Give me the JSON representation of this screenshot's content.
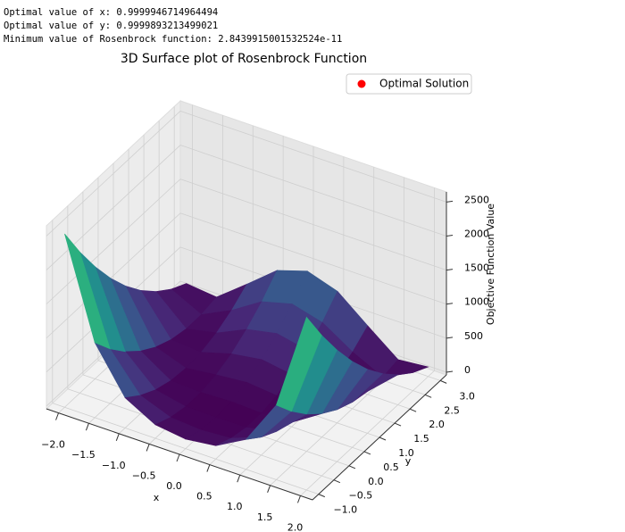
{
  "output_lines": [
    "Optimal value of x: 0.9999946714964494",
    "Optimal value of y: 0.9999893213499021",
    "Minimum value of Rosenbrock function: 2.8439915001532524e-11"
  ],
  "chart_data": {
    "type": "surface3d",
    "title": "3D Surface plot of Rosenbrock Function",
    "xlabel": "x",
    "ylabel": "y",
    "zlabel": "Objective Function Value",
    "colormap": "viridis",
    "x": [
      -2,
      -1.5,
      -1,
      -0.5,
      0,
      0.5,
      1,
      1.5,
      2
    ],
    "y": [
      -1,
      -0.5,
      0,
      0.5,
      1,
      1.5,
      2,
      2.5,
      3
    ],
    "z": [
      [
        2509,
        1062.5,
        404,
        158.5,
        101,
        156.5,
        400,
        1056.5,
        2501
      ],
      [
        2034,
        762.5,
        229,
        58.5,
        26,
        56.5,
        225,
        756.5,
        2026
      ],
      [
        1609,
        512.5,
        104,
        8.5,
        1,
        6.5,
        100,
        506.5,
        1601
      ],
      [
        1234,
        312.5,
        29,
        8.5,
        26,
        6.5,
        25,
        306.5,
        1226
      ],
      [
        909,
        162.5,
        4,
        58.5,
        101,
        56.5,
        0,
        156.5,
        901
      ],
      [
        634,
        62.5,
        29,
        158.5,
        226,
        156.5,
        25,
        56.5,
        626
      ],
      [
        409,
        12.5,
        104,
        308.5,
        401,
        306.5,
        100,
        6.5,
        401
      ],
      [
        234,
        12.5,
        229,
        508.5,
        626,
        506.5,
        225,
        6.5,
        226
      ],
      [
        109,
        62.5,
        404,
        758.5,
        901,
        756.5,
        400,
        56.5,
        101
      ]
    ],
    "xlim": [
      -2.2,
      2.2
    ],
    "ylim": [
      -1.2,
      3.2
    ],
    "zlim": [
      -40,
      2650
    ],
    "xticks": [
      {
        "value": -2,
        "label": "−2.0"
      },
      {
        "value": -1.5,
        "label": "−1.5"
      },
      {
        "value": -1,
        "label": "−1.0"
      },
      {
        "value": -0.5,
        "label": "−0.5"
      },
      {
        "value": 0,
        "label": "0.0"
      },
      {
        "value": 0.5,
        "label": "0.5"
      },
      {
        "value": 1,
        "label": "1.0"
      },
      {
        "value": 1.5,
        "label": "1.5"
      },
      {
        "value": 2,
        "label": "2.0"
      }
    ],
    "yticks": [
      {
        "value": -1,
        "label": "−1.0"
      },
      {
        "value": -0.5,
        "label": "−0.5"
      },
      {
        "value": 0,
        "label": "0.0"
      },
      {
        "value": 0.5,
        "label": "0.5"
      },
      {
        "value": 1,
        "label": "1.0"
      },
      {
        "value": 1.5,
        "label": "1.5"
      },
      {
        "value": 2,
        "label": "2.0"
      },
      {
        "value": 2.5,
        "label": "2.5"
      },
      {
        "value": 3,
        "label": "3.0"
      }
    ],
    "zticks": [
      0,
      500,
      1000,
      1500,
      2000,
      2500
    ],
    "grid": true,
    "legend": {
      "position": "upper right",
      "entries": [
        {
          "name": "Optimal Solution",
          "color": "#ff0000"
        }
      ]
    }
  }
}
